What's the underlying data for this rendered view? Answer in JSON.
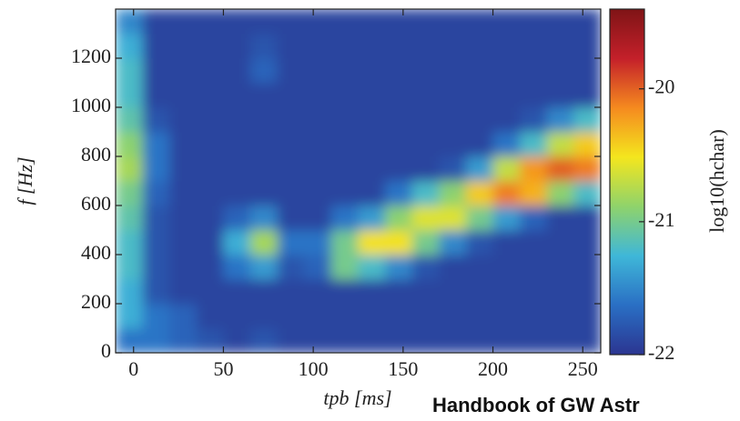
{
  "chart_data": {
    "type": "heatmap",
    "x_label": "tpb [ms]",
    "y_label": "f [Hz]",
    "colorbar_label": "log10(hchar)",
    "watermark": "Handbook of GW Astr",
    "x_bins": [
      -10,
      5,
      20,
      35,
      50,
      65,
      80,
      95,
      110,
      125,
      140,
      155,
      170,
      185,
      200,
      215,
      230,
      245,
      260
    ],
    "y_bins": [
      0,
      100,
      200,
      300,
      400,
      500,
      600,
      700,
      800,
      900,
      1000,
      1100,
      1200,
      1300,
      1400
    ],
    "z": [
      [
        -21.6,
        -21.6,
        -21.7,
        -21.8,
        -21.9,
        -21.8,
        -21.9,
        -21.9,
        -21.9,
        -21.9,
        -21.9,
        -21.9,
        -21.9,
        -21.9,
        -21.9,
        -21.9,
        -21.9,
        -21.9
      ],
      [
        -21.3,
        -21.6,
        -21.7,
        -21.9,
        -21.9,
        -21.9,
        -21.9,
        -21.9,
        -21.9,
        -21.9,
        -21.9,
        -21.9,
        -21.9,
        -21.9,
        -21.9,
        -21.9,
        -21.9,
        -21.9
      ],
      [
        -21.3,
        -21.8,
        -21.9,
        -21.9,
        -21.9,
        -21.9,
        -21.9,
        -21.9,
        -21.9,
        -21.9,
        -21.9,
        -21.9,
        -21.9,
        -21.9,
        -21.9,
        -21.9,
        -21.9,
        -21.9
      ],
      [
        -21.2,
        -21.8,
        -21.9,
        -21.9,
        -21.6,
        -21.4,
        -21.8,
        -21.7,
        -21.0,
        -21.2,
        -21.5,
        -21.8,
        -21.9,
        -21.9,
        -21.9,
        -21.9,
        -21.9,
        -21.9
      ],
      [
        -21.2,
        -21.8,
        -21.9,
        -21.9,
        -21.3,
        -20.8,
        -21.6,
        -21.6,
        -21.0,
        -20.5,
        -20.5,
        -21.0,
        -21.5,
        -21.8,
        -21.9,
        -21.9,
        -21.9,
        -21.9
      ],
      [
        -21.1,
        -21.8,
        -21.9,
        -21.9,
        -21.7,
        -21.5,
        -21.9,
        -21.9,
        -21.6,
        -21.4,
        -20.9,
        -20.6,
        -20.6,
        -21.0,
        -21.4,
        -21.7,
        -21.9,
        -21.9
      ],
      [
        -21.0,
        -21.7,
        -21.9,
        -21.9,
        -21.9,
        -21.9,
        -21.9,
        -21.9,
        -21.9,
        -21.9,
        -21.6,
        -21.2,
        -20.9,
        -20.4,
        -20.1,
        -20.3,
        -20.9,
        -21.2
      ],
      [
        -20.8,
        -21.6,
        -21.9,
        -21.9,
        -21.9,
        -21.9,
        -21.9,
        -21.9,
        -21.9,
        -21.9,
        -21.9,
        -21.9,
        -21.8,
        -21.4,
        -20.7,
        -20.2,
        -20.0,
        -20.1
      ],
      [
        -20.9,
        -21.6,
        -21.9,
        -21.9,
        -21.9,
        -21.9,
        -21.9,
        -21.9,
        -21.9,
        -21.9,
        -21.9,
        -21.9,
        -21.9,
        -21.9,
        -21.6,
        -21.2,
        -20.7,
        -20.4
      ],
      [
        -21.1,
        -21.8,
        -21.9,
        -21.9,
        -21.9,
        -21.9,
        -21.9,
        -21.9,
        -21.9,
        -21.9,
        -21.9,
        -21.9,
        -21.9,
        -21.9,
        -21.9,
        -21.8,
        -21.5,
        -21.2
      ],
      [
        -21.2,
        -21.9,
        -21.9,
        -21.9,
        -21.9,
        -21.9,
        -21.9,
        -21.9,
        -21.9,
        -21.9,
        -21.9,
        -21.9,
        -21.9,
        -21.9,
        -21.9,
        -21.9,
        -21.9,
        -21.9
      ],
      [
        -21.2,
        -21.9,
        -21.9,
        -21.9,
        -21.9,
        -21.7,
        -21.9,
        -21.9,
        -21.9,
        -21.9,
        -21.9,
        -21.9,
        -21.9,
        -21.9,
        -21.9,
        -21.9,
        -21.9,
        -21.9
      ],
      [
        -21.3,
        -21.9,
        -21.9,
        -21.9,
        -21.9,
        -21.8,
        -21.9,
        -21.9,
        -21.9,
        -21.9,
        -21.9,
        -21.9,
        -21.9,
        -21.9,
        -21.9,
        -21.9,
        -21.9,
        -21.9
      ],
      [
        -21.5,
        -21.9,
        -21.9,
        -21.9,
        -21.9,
        -21.9,
        -21.9,
        -21.9,
        -21.9,
        -21.9,
        -21.9,
        -21.9,
        -21.9,
        -21.9,
        -21.9,
        -21.9,
        -21.9,
        -21.9
      ]
    ],
    "xlim": [
      -10,
      260
    ],
    "ylim": [
      0,
      1400
    ],
    "xticks": [
      0,
      50,
      100,
      150,
      200,
      250
    ],
    "yticks": [
      0,
      200,
      400,
      600,
      800,
      1000,
      1200
    ],
    "clim": [
      -22,
      -19.4
    ],
    "cticks": [
      -22,
      -21,
      -20
    ],
    "colormap": [
      "#2b3591",
      "#2a6fc4",
      "#3fb7d8",
      "#8fd36b",
      "#f4e61e",
      "#f58a1f",
      "#c4202a",
      "#7f1416"
    ]
  }
}
